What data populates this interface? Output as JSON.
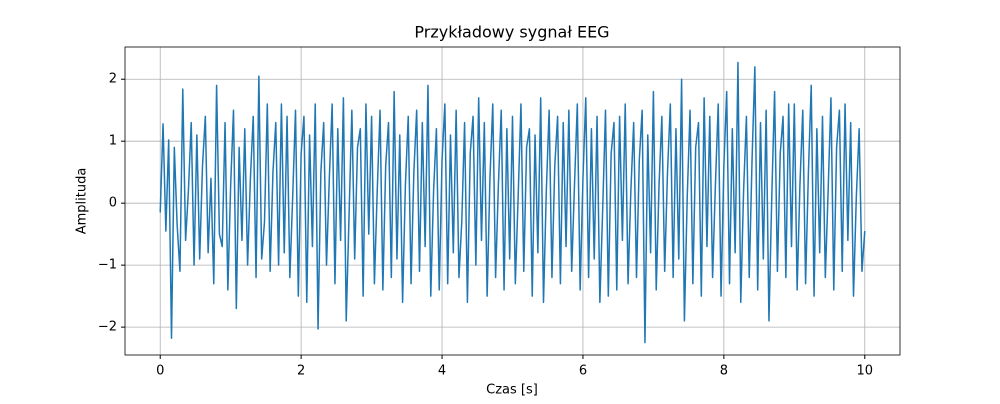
{
  "chart_data": {
    "type": "line",
    "title": "Przykładowy sygnał EEG",
    "xlabel": "Czas [s]",
    "ylabel": "Amplituda",
    "x": [
      0,
      0.04,
      0.08,
      0.12,
      0.16,
      0.2,
      0.24,
      0.28,
      0.32,
      0.36,
      0.4,
      0.44,
      0.48,
      0.52,
      0.56,
      0.6,
      0.64,
      0.68,
      0.72,
      0.76,
      0.8,
      0.84,
      0.88,
      0.92,
      0.96,
      1,
      1.04,
      1.08,
      1.12,
      1.16,
      1.2,
      1.24,
      1.28,
      1.32,
      1.36,
      1.4,
      1.44,
      1.48,
      1.52,
      1.56,
      1.6,
      1.64,
      1.68,
      1.72,
      1.76,
      1.8,
      1.84,
      1.88,
      1.92,
      1.96,
      2,
      2.04,
      2.08,
      2.12,
      2.16,
      2.2,
      2.24,
      2.28,
      2.32,
      2.36,
      2.4,
      2.44,
      2.48,
      2.52,
      2.56,
      2.6,
      2.64,
      2.68,
      2.72,
      2.76,
      2.8,
      2.84,
      2.88,
      2.92,
      2.96,
      3,
      3.04,
      3.08,
      3.12,
      3.16,
      3.2,
      3.24,
      3.28,
      3.32,
      3.36,
      3.4,
      3.44,
      3.48,
      3.52,
      3.56,
      3.6,
      3.64,
      3.68,
      3.72,
      3.76,
      3.8,
      3.84,
      3.88,
      3.92,
      3.96,
      4,
      4.04,
      4.08,
      4.12,
      4.16,
      4.2,
      4.24,
      4.28,
      4.32,
      4.36,
      4.4,
      4.44,
      4.48,
      4.52,
      4.56,
      4.6,
      4.64,
      4.68,
      4.72,
      4.76,
      4.8,
      4.84,
      4.88,
      4.92,
      4.96,
      5,
      5.04,
      5.08,
      5.12,
      5.16,
      5.2,
      5.24,
      5.28,
      5.32,
      5.36,
      5.4,
      5.44,
      5.48,
      5.52,
      5.56,
      5.6,
      5.64,
      5.68,
      5.72,
      5.76,
      5.8,
      5.84,
      5.88,
      5.92,
      5.96,
      6,
      6.04,
      6.08,
      6.12,
      6.16,
      6.2,
      6.24,
      6.28,
      6.32,
      6.36,
      6.4,
      6.44,
      6.48,
      6.52,
      6.56,
      6.6,
      6.64,
      6.68,
      6.72,
      6.76,
      6.8,
      6.84,
      6.88,
      6.92,
      6.96,
      7,
      7.04,
      7.08,
      7.12,
      7.16,
      7.2,
      7.24,
      7.28,
      7.32,
      7.36,
      7.4,
      7.44,
      7.48,
      7.52,
      7.56,
      7.6,
      7.64,
      7.68,
      7.72,
      7.76,
      7.8,
      7.84,
      7.88,
      7.92,
      7.96,
      8,
      8.04,
      8.08,
      8.12,
      8.16,
      8.2,
      8.24,
      8.28,
      8.32,
      8.36,
      8.4,
      8.44,
      8.48,
      8.52,
      8.56,
      8.6,
      8.64,
      8.68,
      8.72,
      8.76,
      8.8,
      8.84,
      8.88,
      8.92,
      8.96,
      9,
      9.04,
      9.08,
      9.12,
      9.16,
      9.2,
      9.24,
      9.28,
      9.32,
      9.36,
      9.4,
      9.44,
      9.48,
      9.52,
      9.56,
      9.6,
      9.64,
      9.68,
      9.72,
      9.76,
      9.8,
      9.84,
      9.88,
      9.92,
      9.96,
      10
    ],
    "values": [
      -0.15,
      1.28,
      -0.45,
      1.02,
      -2.18,
      0.9,
      -0.35,
      -1.1,
      1.84,
      -0.6,
      0.2,
      1.3,
      -1.0,
      1.1,
      -0.9,
      0.6,
      1.4,
      -0.8,
      0.4,
      -1.3,
      1.9,
      -0.5,
      -0.7,
      1.3,
      -1.4,
      0.3,
      1.5,
      -1.7,
      0.9,
      -0.6,
      1.2,
      -1.0,
      0.4,
      1.4,
      -1.2,
      2.05,
      -0.9,
      -0.3,
      1.6,
      -1.1,
      0.5,
      1.3,
      -1.0,
      1.6,
      -0.8,
      1.4,
      -1.2,
      0.1,
      1.5,
      -1.5,
      0.8,
      1.4,
      -1.6,
      1.1,
      -0.7,
      1.6,
      -2.03,
      0.5,
      1.3,
      -1.0,
      0.4,
      1.6,
      -1.3,
      1.2,
      -0.6,
      1.7,
      -1.9,
      -0.2,
      1.5,
      -0.9,
      0.9,
      1.2,
      -1.5,
      1.6,
      -0.5,
      1.4,
      -1.3,
      0.2,
      1.5,
      -1.4,
      0.6,
      1.3,
      -1.2,
      1.8,
      -0.9,
      1.1,
      -1.6,
      0.3,
      1.4,
      -1.3,
      0.5,
      1.5,
      -1.1,
      1.3,
      -0.7,
      1.9,
      -1.5,
      0.2,
      1.2,
      -1.4,
      0.7,
      1.6,
      -1.3,
      1.1,
      -0.8,
      1.5,
      -1.2,
      -0.3,
      1.3,
      -1.6,
      0.8,
      1.4,
      -1.0,
      1.7,
      -0.6,
      1.3,
      -1.5,
      0.4,
      1.6,
      -1.2,
      0.3,
      1.5,
      -1.4,
      1.2,
      -0.9,
      1.4,
      -1.3,
      0.1,
      1.6,
      -1.1,
      0.9,
      1.2,
      -1.5,
      1.1,
      -0.8,
      1.7,
      -1.6,
      0.2,
      1.5,
      -1.2,
      0.6,
      1.4,
      -1.3,
      1.3,
      -0.7,
      1.5,
      -1.1,
      0.3,
      1.6,
      -1.4,
      0.4,
      1.7,
      -1.2,
      1.2,
      -0.9,
      1.4,
      -1.6,
      -0.1,
      1.5,
      -1.5,
      0.8,
      1.3,
      -1.4,
      1.4,
      -0.6,
      1.6,
      -1.3,
      0.2,
      1.3,
      -1.2,
      0.7,
      1.5,
      -2.25,
      1.1,
      -0.8,
      1.8,
      -1.4,
      0.3,
      1.4,
      -1.1,
      0.5,
      1.6,
      -1.2,
      1.2,
      -0.9,
      2.0,
      -1.9,
      0.1,
      1.5,
      -1.3,
      0.9,
      1.3,
      -1.5,
      1.7,
      -0.7,
      1.4,
      -1.2,
      0.3,
      1.6,
      -1.5,
      0.6,
      1.8,
      -1.3,
      1.2,
      -0.8,
      2.27,
      -1.6,
      0.2,
      1.4,
      -1.2,
      0.7,
      2.2,
      -1.4,
      1.3,
      -0.9,
      1.5,
      -1.9,
      0.1,
      1.8,
      -1.1,
      0.8,
      1.4,
      -1.2,
      1.6,
      -0.7,
      1.6,
      -1.4,
      0.3,
      1.5,
      -1.3,
      0.5,
      1.9,
      -1.5,
      1.2,
      -0.8,
      1.4,
      -1.2,
      0.2,
      1.7,
      -1.4,
      0.9,
      1.5,
      -1.1,
      1.6,
      -0.6,
      1.3,
      -1.5,
      0.1,
      1.2,
      -1.1,
      -0.45
    ],
    "color": "#1f77b4",
    "xlim": [
      -0.5,
      10.5
    ],
    "ylim": [
      -2.45,
      2.52
    ],
    "xticks": [
      0,
      2,
      4,
      6,
      8,
      10
    ],
    "yticks": [
      {
        "value": -2,
        "label": "−2"
      },
      {
        "value": -1,
        "label": "−1"
      },
      0,
      1,
      2
    ],
    "grid": true
  }
}
